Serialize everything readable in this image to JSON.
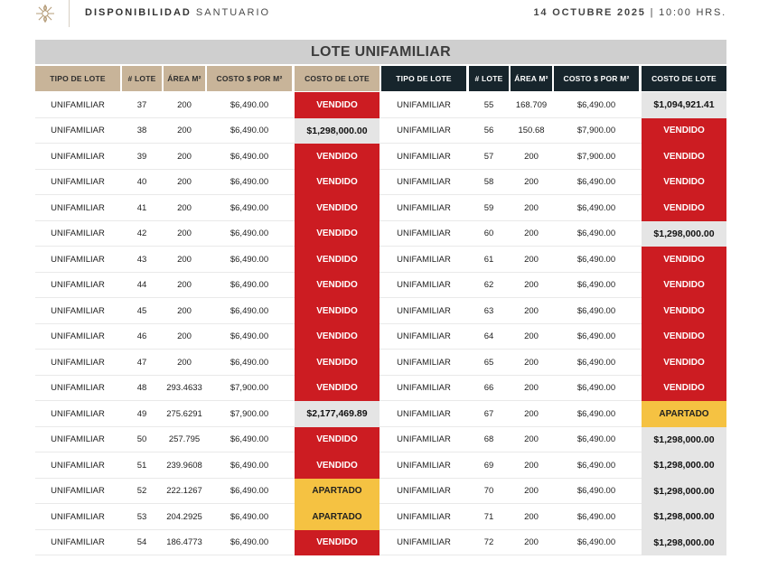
{
  "header": {
    "brand_bold": "DISPONIBILIDAD",
    "brand_light": "SANTUARIO",
    "date": "14 OCTUBRE 2025",
    "separator": "|",
    "time": "10:00 HRS.",
    "logo_icon": "sun-flower-icon"
  },
  "section_title": "LOTE UNIFAMILIAR",
  "columns": [
    "TIPO DE LOTE",
    "# LOTE",
    "ÁREA M²",
    "COSTO $ POR M²",
    "COSTO DE LOTE"
  ],
  "colors": {
    "sold": "#cc1c22",
    "hold": "#f5c242",
    "price": "#e5e5e5",
    "tan_header": "#c8b499",
    "dark_header": "#17252c"
  },
  "left_rows": [
    {
      "tipo": "UNIFAMILIAR",
      "lote": "37",
      "area": "200",
      "costo_m2": "$6,490.00",
      "costo": "VENDIDO",
      "status": "sold"
    },
    {
      "tipo": "UNIFAMILIAR",
      "lote": "38",
      "area": "200",
      "costo_m2": "$6,490.00",
      "costo": "$1,298,000.00",
      "status": "price"
    },
    {
      "tipo": "UNIFAMILIAR",
      "lote": "39",
      "area": "200",
      "costo_m2": "$6,490.00",
      "costo": "VENDIDO",
      "status": "sold"
    },
    {
      "tipo": "UNIFAMILIAR",
      "lote": "40",
      "area": "200",
      "costo_m2": "$6,490.00",
      "costo": "VENDIDO",
      "status": "sold"
    },
    {
      "tipo": "UNIFAMILIAR",
      "lote": "41",
      "area": "200",
      "costo_m2": "$6,490.00",
      "costo": "VENDIDO",
      "status": "sold"
    },
    {
      "tipo": "UNIFAMILIAR",
      "lote": "42",
      "area": "200",
      "costo_m2": "$6,490.00",
      "costo": "VENDIDO",
      "status": "sold"
    },
    {
      "tipo": "UNIFAMILIAR",
      "lote": "43",
      "area": "200",
      "costo_m2": "$6,490.00",
      "costo": "VENDIDO",
      "status": "sold"
    },
    {
      "tipo": "UNIFAMILIAR",
      "lote": "44",
      "area": "200",
      "costo_m2": "$6,490.00",
      "costo": "VENDIDO",
      "status": "sold"
    },
    {
      "tipo": "UNIFAMILIAR",
      "lote": "45",
      "area": "200",
      "costo_m2": "$6,490.00",
      "costo": "VENDIDO",
      "status": "sold"
    },
    {
      "tipo": "UNIFAMILIAR",
      "lote": "46",
      "area": "200",
      "costo_m2": "$6,490.00",
      "costo": "VENDIDO",
      "status": "sold"
    },
    {
      "tipo": "UNIFAMILIAR",
      "lote": "47",
      "area": "200",
      "costo_m2": "$6,490.00",
      "costo": "VENDIDO",
      "status": "sold"
    },
    {
      "tipo": "UNIFAMILIAR",
      "lote": "48",
      "area": "293.4633",
      "costo_m2": "$7,900.00",
      "costo": "VENDIDO",
      "status": "sold"
    },
    {
      "tipo": "UNIFAMILIAR",
      "lote": "49",
      "area": "275.6291",
      "costo_m2": "$7,900.00",
      "costo": "$2,177,469.89",
      "status": "price"
    },
    {
      "tipo": "UNIFAMILIAR",
      "lote": "50",
      "area": "257.795",
      "costo_m2": "$6,490.00",
      "costo": "VENDIDO",
      "status": "sold"
    },
    {
      "tipo": "UNIFAMILIAR",
      "lote": "51",
      "area": "239.9608",
      "costo_m2": "$6,490.00",
      "costo": "VENDIDO",
      "status": "sold"
    },
    {
      "tipo": "UNIFAMILIAR",
      "lote": "52",
      "area": "222.1267",
      "costo_m2": "$6,490.00",
      "costo": "APARTADO",
      "status": "hold"
    },
    {
      "tipo": "UNIFAMILIAR",
      "lote": "53",
      "area": "204.2925",
      "costo_m2": "$6,490.00",
      "costo": "APARTADO",
      "status": "hold"
    },
    {
      "tipo": "UNIFAMILIAR",
      "lote": "54",
      "area": "186.4773",
      "costo_m2": "$6,490.00",
      "costo": "VENDIDO",
      "status": "sold"
    }
  ],
  "right_rows": [
    {
      "tipo": "UNIFAMILIAR",
      "lote": "55",
      "area": "168.709",
      "costo_m2": "$6,490.00",
      "costo": "$1,094,921.41",
      "status": "price"
    },
    {
      "tipo": "UNIFAMILIAR",
      "lote": "56",
      "area": "150.68",
      "costo_m2": "$7,900.00",
      "costo": "VENDIDO",
      "status": "sold"
    },
    {
      "tipo": "UNIFAMILIAR",
      "lote": "57",
      "area": "200",
      "costo_m2": "$7,900.00",
      "costo": "VENDIDO",
      "status": "sold"
    },
    {
      "tipo": "UNIFAMILIAR",
      "lote": "58",
      "area": "200",
      "costo_m2": "$6,490.00",
      "costo": "VENDIDO",
      "status": "sold"
    },
    {
      "tipo": "UNIFAMILIAR",
      "lote": "59",
      "area": "200",
      "costo_m2": "$6,490.00",
      "costo": "VENDIDO",
      "status": "sold"
    },
    {
      "tipo": "UNIFAMILIAR",
      "lote": "60",
      "area": "200",
      "costo_m2": "$6,490.00",
      "costo": "$1,298,000.00",
      "status": "price"
    },
    {
      "tipo": "UNIFAMILIAR",
      "lote": "61",
      "area": "200",
      "costo_m2": "$6,490.00",
      "costo": "VENDIDO",
      "status": "sold"
    },
    {
      "tipo": "UNIFAMILIAR",
      "lote": "62",
      "area": "200",
      "costo_m2": "$6,490.00",
      "costo": "VENDIDO",
      "status": "sold"
    },
    {
      "tipo": "UNIFAMILIAR",
      "lote": "63",
      "area": "200",
      "costo_m2": "$6,490.00",
      "costo": "VENDIDO",
      "status": "sold"
    },
    {
      "tipo": "UNIFAMILIAR",
      "lote": "64",
      "area": "200",
      "costo_m2": "$6,490.00",
      "costo": "VENDIDO",
      "status": "sold"
    },
    {
      "tipo": "UNIFAMILIAR",
      "lote": "65",
      "area": "200",
      "costo_m2": "$6,490.00",
      "costo": "VENDIDO",
      "status": "sold"
    },
    {
      "tipo": "UNIFAMILIAR",
      "lote": "66",
      "area": "200",
      "costo_m2": "$6,490.00",
      "costo": "VENDIDO",
      "status": "sold"
    },
    {
      "tipo": "UNIFAMILIAR",
      "lote": "67",
      "area": "200",
      "costo_m2": "$6,490.00",
      "costo": "APARTADO",
      "status": "hold"
    },
    {
      "tipo": "UNIFAMILIAR",
      "lote": "68",
      "area": "200",
      "costo_m2": "$6,490.00",
      "costo": "$1,298,000.00",
      "status": "price"
    },
    {
      "tipo": "UNIFAMILIAR",
      "lote": "69",
      "area": "200",
      "costo_m2": "$6,490.00",
      "costo": "$1,298,000.00",
      "status": "price"
    },
    {
      "tipo": "UNIFAMILIAR",
      "lote": "70",
      "area": "200",
      "costo_m2": "$6,490.00",
      "costo": "$1,298,000.00",
      "status": "price"
    },
    {
      "tipo": "UNIFAMILIAR",
      "lote": "71",
      "area": "200",
      "costo_m2": "$6,490.00",
      "costo": "$1,298,000.00",
      "status": "price"
    },
    {
      "tipo": "UNIFAMILIAR",
      "lote": "72",
      "area": "200",
      "costo_m2": "$6,490.00",
      "costo": "$1,298,000.00",
      "status": "price"
    }
  ]
}
